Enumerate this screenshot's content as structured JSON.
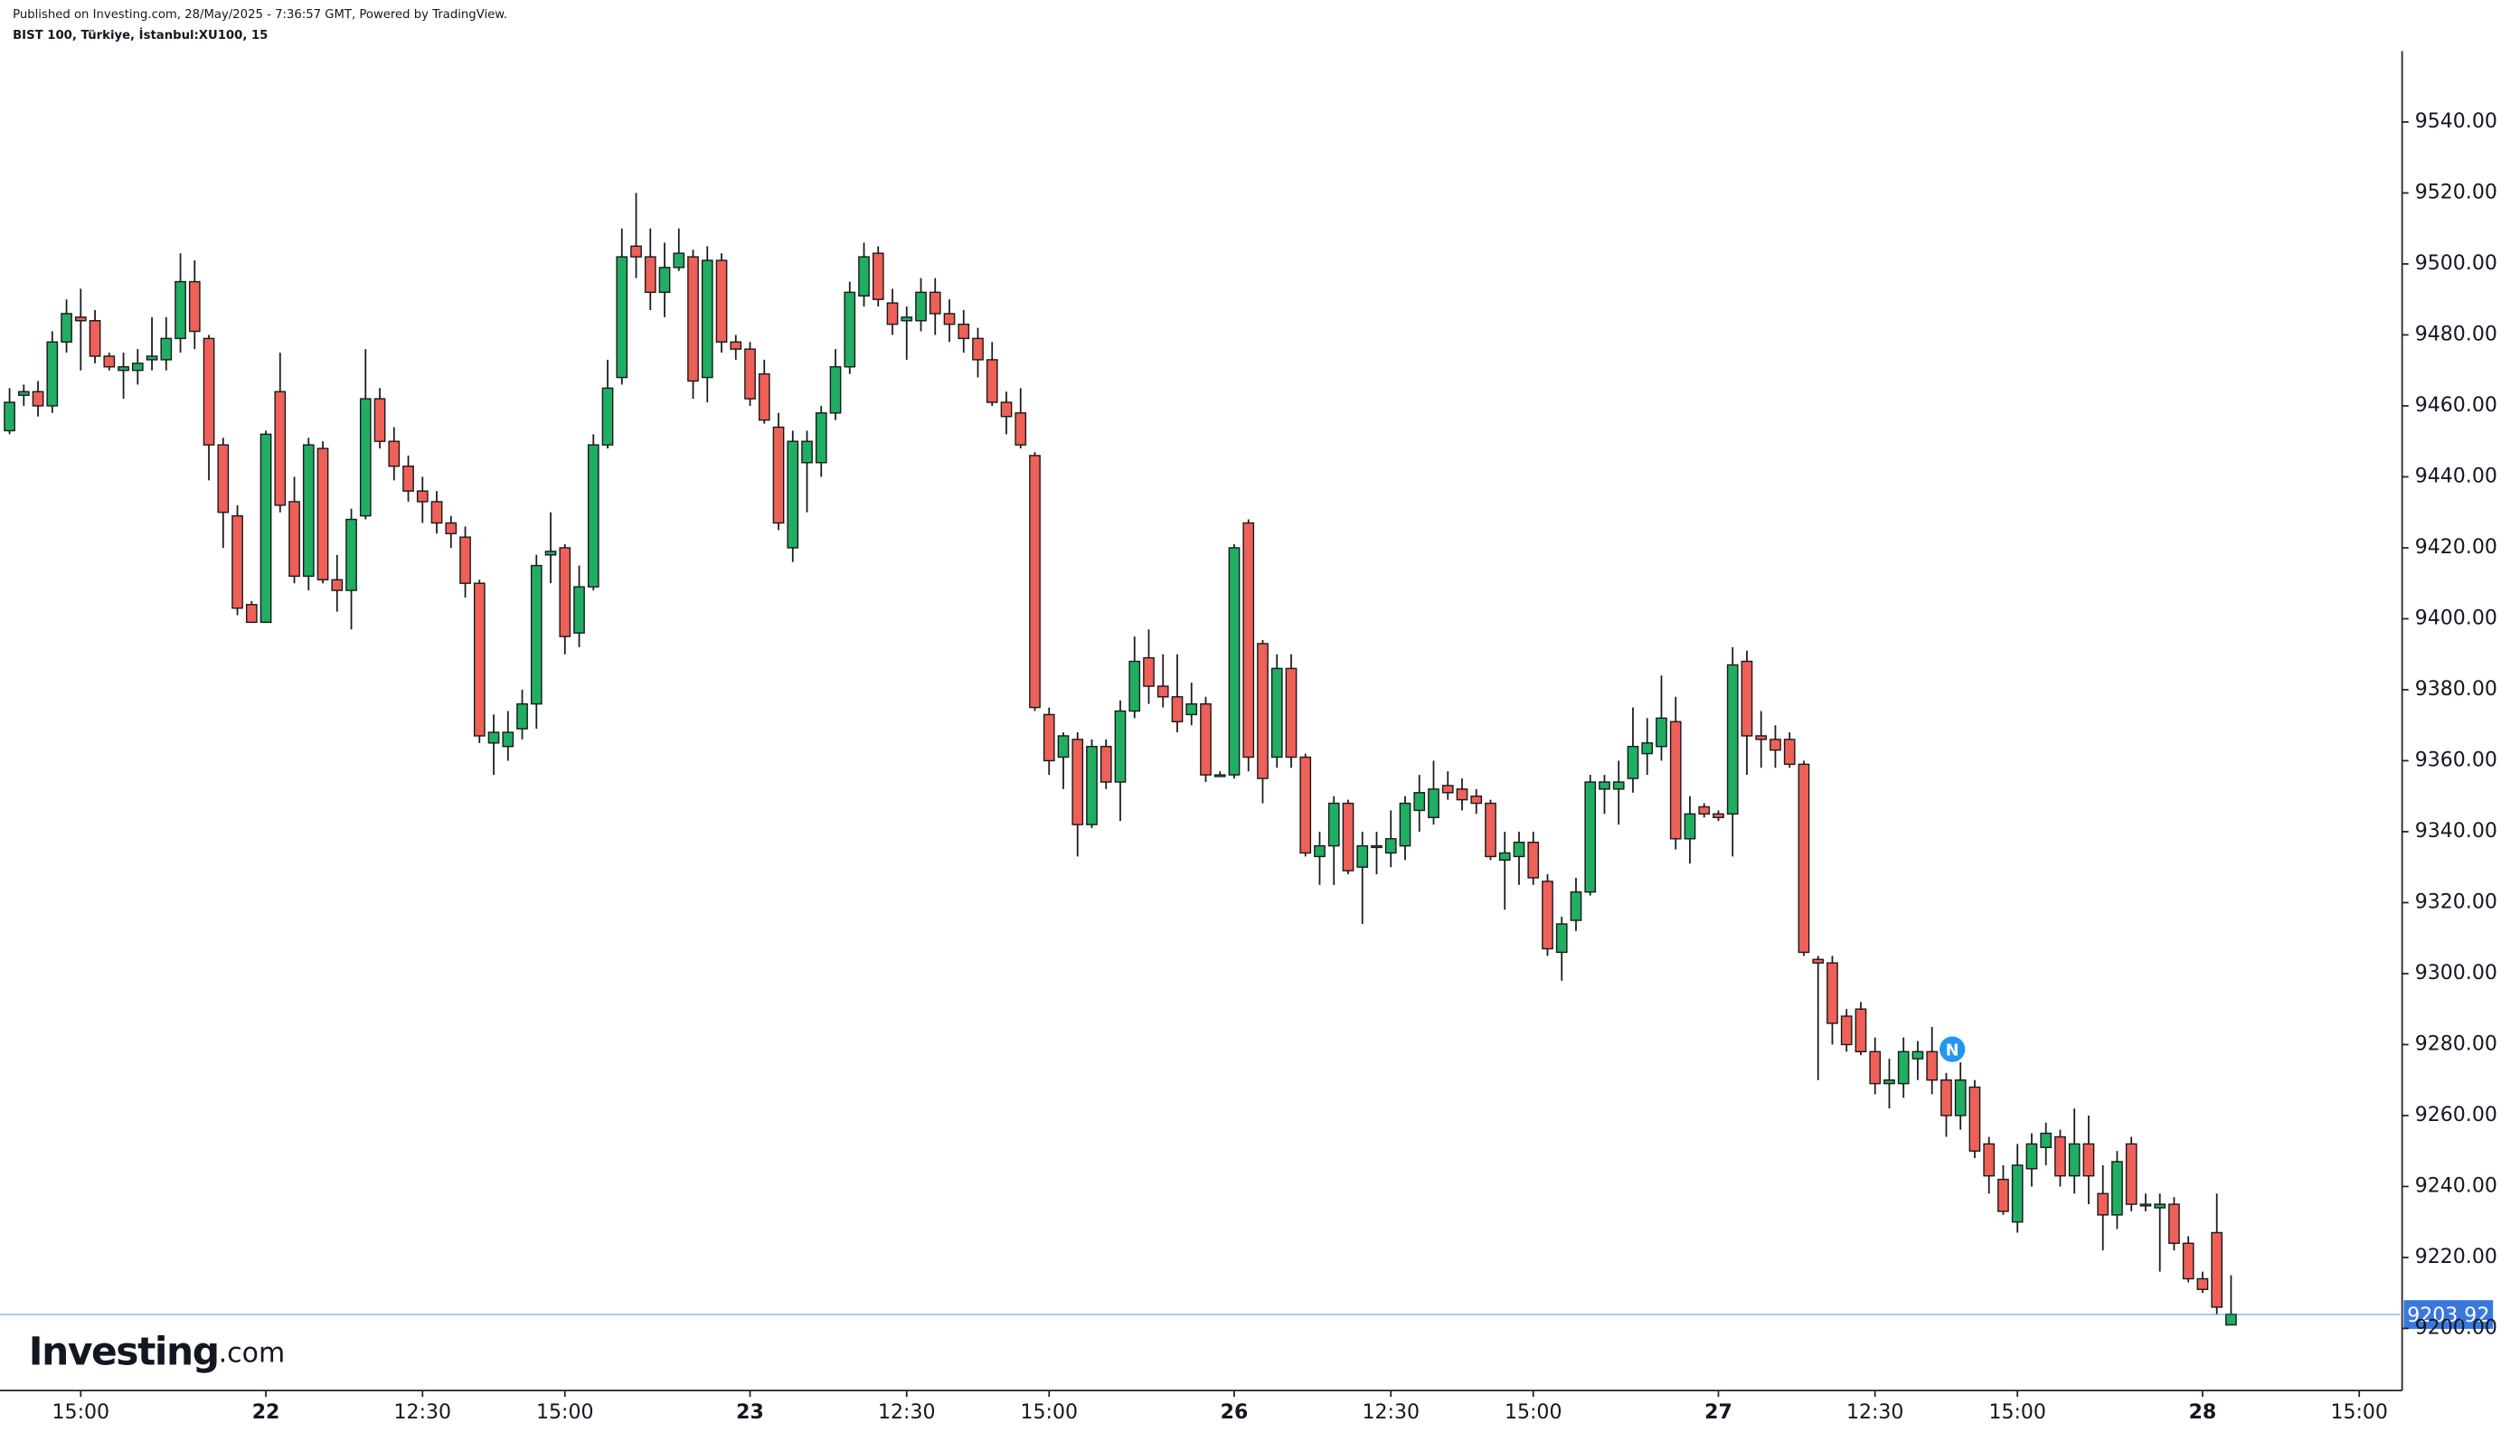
{
  "chart_data": {
    "type": "candlestick",
    "published": "Published on Investing.com, 28/May/2025 - 7:36:57 GMT, Powered by TradingView.",
    "title": "BIST 100, Türkiye, İstanbul:XU100, 15",
    "logo": "Investing",
    "logo_suffix": ".com",
    "marker_label": "N",
    "up_color": "#1fae62",
    "down_color": "#ee6058",
    "wick_color": "#1a1a1a",
    "last_price": 9203.92,
    "last_price_color": "#3a78e0",
    "grid": false,
    "open": [
      9453,
      9463,
      9464,
      9460,
      9478,
      9485,
      9484,
      9474,
      9470,
      9470,
      9473,
      9473,
      9479,
      9495,
      9479,
      9449,
      9429,
      9404,
      9399,
      9464,
      9433,
      9412,
      9448,
      9411,
      9408,
      9429,
      9462,
      9450,
      9443,
      9436,
      9433,
      9427,
      9423,
      9410,
      9365,
      9364,
      9369,
      9376,
      9418,
      9420,
      9396,
      9409,
      9449,
      9468,
      9505,
      9502,
      9492,
      9499,
      9502,
      9468,
      9501,
      9478,
      9476,
      9469,
      9454,
      9420,
      9444,
      9444,
      9458,
      9471,
      9491,
      9503,
      9489,
      9484,
      9484,
      9492,
      9486,
      9483,
      9479,
      9473,
      9461,
      9458,
      9446,
      9373,
      9361,
      9366,
      9342,
      9364,
      9354,
      9374,
      9389,
      9381,
      9378,
      9373,
      9376,
      9356,
      9356,
      9427,
      9393,
      9361,
      9386,
      9361,
      9333,
      9336,
      9348,
      9330,
      9336,
      9334,
      9336,
      9346,
      9344,
      9353,
      9352,
      9350,
      9348,
      9332,
      9333,
      9337,
      9326,
      9306,
      9315,
      9323,
      9352,
      9352,
      9355,
      9362,
      9364,
      9371,
      9338,
      9347,
      9345,
      9345,
      9388,
      9367,
      9366,
      9366,
      9359,
      9304,
      9303,
      9288,
      9290,
      9278,
      9269,
      9269,
      9276,
      9278,
      9270,
      9260,
      9268,
      9252,
      9242,
      9230,
      9245,
      9251,
      9254,
      9243,
      9252,
      9238,
      9232,
      9252,
      9235,
      9234,
      9235,
      9224,
      9214,
      9227,
      9201
    ],
    "high": [
      9465,
      9466,
      9467,
      9481,
      9490,
      9493,
      9487,
      9475,
      9475,
      9476,
      9485,
      9485,
      9503,
      9501,
      9480,
      9451,
      9432,
      9405,
      9453,
      9475,
      9440,
      9451,
      9450,
      9418,
      9431,
      9476,
      9465,
      9454,
      9446,
      9440,
      9436,
      9429,
      9426,
      9411,
      9373,
      9374,
      9380,
      9418,
      9430,
      9421,
      9415,
      9452,
      9473,
      9510,
      9520,
      9510,
      9506,
      9510,
      9504,
      9505,
      9503,
      9480,
      9478,
      9473,
      9458,
      9453,
      9453,
      9460,
      9476,
      9495,
      9506,
      9505,
      9493,
      9488,
      9496,
      9496,
      9490,
      9487,
      9482,
      9478,
      9464,
      9465,
      9447,
      9375,
      9368,
      9368,
      9366,
      9366,
      9377,
      9395,
      9397,
      9390,
      9390,
      9382,
      9378,
      9357,
      9421,
      9428,
      9394,
      9390,
      9390,
      9362,
      9340,
      9350,
      9349,
      9340,
      9340,
      9346,
      9350,
      9356,
      9360,
      9357,
      9355,
      9352,
      9349,
      9340,
      9340,
      9340,
      9328,
      9316,
      9327,
      9356,
      9356,
      9360,
      9375,
      9372,
      9384,
      9378,
      9350,
      9348,
      9346,
      9392,
      9391,
      9374,
      9370,
      9368,
      9360,
      9305,
      9305,
      9290,
      9292,
      9282,
      9276,
      9282,
      9281,
      9285,
      9272,
      9275,
      9270,
      9254,
      9246,
      9252,
      9255,
      9258,
      9256,
      9262,
      9260,
      9246,
      9250,
      9254,
      9238,
      9238,
      9237,
      9226,
      9216,
      9238,
      9215
    ],
    "low": [
      9452,
      9460,
      9457,
      9458,
      9475,
      9470,
      9472,
      9470,
      9462,
      9466,
      9470,
      9470,
      9475,
      9476,
      9439,
      9420,
      9401,
      9399,
      9399,
      9430,
      9410,
      9408,
      9410,
      9402,
      9397,
      9428,
      9448,
      9439,
      9433,
      9427,
      9424,
      9420,
      9406,
      9365,
      9356,
      9360,
      9366,
      9369,
      9410,
      9390,
      9392,
      9408,
      9448,
      9466,
      9496,
      9487,
      9485,
      9498,
      9462,
      9461,
      9475,
      9473,
      9460,
      9455,
      9425,
      9416,
      9430,
      9440,
      9456,
      9469,
      9488,
      9488,
      9480,
      9473,
      9481,
      9480,
      9478,
      9475,
      9468,
      9460,
      9452,
      9448,
      9374,
      9356,
      9352,
      9333,
      9341,
      9352,
      9343,
      9372,
      9376,
      9375,
      9368,
      9370,
      9354,
      9356,
      9355,
      9357,
      9348,
      9358,
      9358,
      9333,
      9325,
      9325,
      9328,
      9314,
      9328,
      9330,
      9332,
      9340,
      9342,
      9349,
      9346,
      9345,
      9332,
      9318,
      9325,
      9325,
      9305,
      9298,
      9312,
      9322,
      9345,
      9342,
      9351,
      9356,
      9360,
      9335,
      9331,
      9344,
      9343,
      9333,
      9356,
      9358,
      9358,
      9358,
      9305,
      9270,
      9280,
      9278,
      9277,
      9266,
      9262,
      9265,
      9270,
      9266,
      9254,
      9256,
      9248,
      9238,
      9232,
      9227,
      9240,
      9246,
      9240,
      9238,
      9235,
      9222,
      9228,
      9233,
      9233,
      9216,
      9222,
      9213,
      9210,
      9204,
      9201
    ],
    "close": [
      9461,
      9464,
      9460,
      9478,
      9486,
      9484,
      9474,
      9471,
      9471,
      9472,
      9474,
      9479,
      9495,
      9481,
      9449,
      9430,
      9403,
      9399,
      9452,
      9432,
      9412,
      9449,
      9411,
      9408,
      9428,
      9462,
      9450,
      9443,
      9436,
      9433,
      9427,
      9424,
      9410,
      9367,
      9368,
      9368,
      9376,
      9415,
      9419,
      9395,
      9409,
      9449,
      9465,
      9502,
      9502,
      9492,
      9499,
      9503,
      9467,
      9501,
      9478,
      9476,
      9462,
      9456,
      9427,
      9450,
      9450,
      9458,
      9471,
      9492,
      9502,
      9490,
      9483,
      9485,
      9492,
      9486,
      9483,
      9479,
      9473,
      9461,
      9457,
      9449,
      9375,
      9360,
      9367,
      9342,
      9364,
      9354,
      9374,
      9388,
      9381,
      9378,
      9371,
      9376,
      9356,
      9356,
      9420,
      9361,
      9355,
      9386,
      9361,
      9334,
      9336,
      9348,
      9329,
      9336,
      9336,
      9338,
      9348,
      9351,
      9352,
      9351,
      9349,
      9348,
      9333,
      9334,
      9337,
      9327,
      9307,
      9314,
      9323,
      9354,
      9354,
      9354,
      9364,
      9365,
      9372,
      9338,
      9345,
      9345,
      9344,
      9387,
      9367,
      9366,
      9363,
      9359,
      9306,
      9303,
      9286,
      9280,
      9278,
      9269,
      9270,
      9278,
      9278,
      9270,
      9260,
      9270,
      9250,
      9243,
      9233,
      9246,
      9252,
      9255,
      9243,
      9252,
      9243,
      9232,
      9247,
      9235,
      9235,
      9235,
      9224,
      9214,
      9211,
      9206,
      9204
    ],
    "xlim": [
      -0.67,
      167.9
    ],
    "xticks": [
      {
        "value": 5,
        "label": "15:00"
      },
      {
        "value": 18,
        "label": "22"
      },
      {
        "value": 29,
        "label": "12:30"
      },
      {
        "value": 39,
        "label": "15:00"
      },
      {
        "value": 52,
        "label": "23"
      },
      {
        "value": 63,
        "label": "12:30"
      },
      {
        "value": 73,
        "label": "15:00"
      },
      {
        "value": 86,
        "label": "26"
      },
      {
        "value": 97,
        "label": "12:30"
      },
      {
        "value": 107,
        "label": "15:00"
      },
      {
        "value": 120,
        "label": "27"
      },
      {
        "value": 131,
        "label": "12:30"
      },
      {
        "value": 141,
        "label": "15:00"
      },
      {
        "value": 154,
        "label": "28"
      },
      {
        "value": 165,
        "label": "15:00"
      }
    ],
    "ylim": [
      9182.5,
      9560
    ],
    "yticks": [
      {
        "value": 9200,
        "label": "9200.00"
      },
      {
        "value": 9220,
        "label": "9220.00"
      },
      {
        "value": 9240,
        "label": "9240.00"
      },
      {
        "value": 9260,
        "label": "9260.00"
      },
      {
        "value": 9280,
        "label": "9280.00"
      },
      {
        "value": 9300,
        "label": "9300.00"
      },
      {
        "value": 9320,
        "label": "9320.00"
      },
      {
        "value": 9340,
        "label": "9340.00"
      },
      {
        "value": 9360,
        "label": "9360.00"
      },
      {
        "value": 9380,
        "label": "9380.00"
      },
      {
        "value": 9400,
        "label": "9400.00"
      },
      {
        "value": 9420,
        "label": "9420.00"
      },
      {
        "value": 9440,
        "label": "9440.00"
      },
      {
        "value": 9460,
        "label": "9460.00"
      },
      {
        "value": 9480,
        "label": "9480.00"
      },
      {
        "value": 9500,
        "label": "9500.00"
      },
      {
        "value": 9520,
        "label": "9520.00"
      },
      {
        "value": 9540,
        "label": "9540.00"
      }
    ]
  }
}
